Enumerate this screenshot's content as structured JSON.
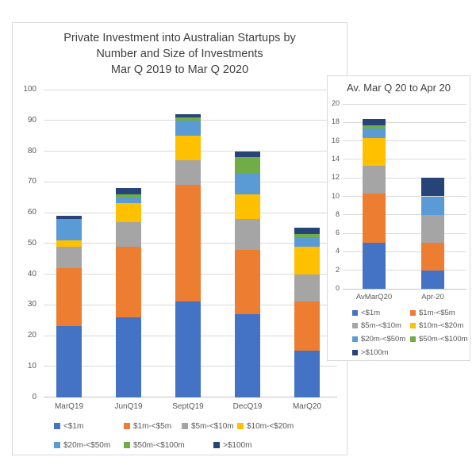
{
  "colors": {
    "lt1m": "#4472C4",
    "m1to5": "#ED7D31",
    "m5to10": "#A5A5A5",
    "m10to20": "#FFC000",
    "m20to50": "#5B9BD5",
    "m50to100": "#70AD47",
    "gt100m": "#264478",
    "gridline": "#D9D9D9",
    "axis_text": "#595959",
    "title_text": "#404040",
    "panel_border": "#D9D9D9"
  },
  "chart_data": [
    {
      "type": "bar",
      "stacked": true,
      "title": "Private Investment into Australian Startups by Number and Size of Investments Mar Q 2019 to Mar Q 2020",
      "title_lines": [
        "Private Investment into Australian Startups by",
        "Number and Size of Investments",
        "Mar Q 2019 to Mar Q 2020"
      ],
      "categories": [
        "MarQ19",
        "JunQ19",
        "SeptQ19",
        "DecQ19",
        "MarQ20"
      ],
      "series": [
        {
          "name": "<$1m",
          "color": "#4472C4",
          "values": [
            23,
            26,
            31,
            27,
            15
          ]
        },
        {
          "name": "$1m-<$5m",
          "color": "#ED7D31",
          "values": [
            19,
            23,
            38,
            21,
            16
          ]
        },
        {
          "name": "$5m-<$10m",
          "color": "#A5A5A5",
          "values": [
            7,
            8,
            8,
            10,
            9
          ]
        },
        {
          "name": "$10m-<$20m",
          "color": "#FFC000",
          "values": [
            2,
            6,
            8,
            8,
            9
          ]
        },
        {
          "name": "$20m-<$50m",
          "color": "#5B9BD5",
          "values": [
            7,
            2,
            5,
            7,
            3
          ]
        },
        {
          "name": "$50m-<$100m",
          "color": "#70AD47",
          "values": [
            0,
            1,
            1,
            5,
            1
          ]
        },
        {
          "name": ">$100m",
          "color": "#264478",
          "values": [
            1,
            2,
            1,
            2,
            2
          ]
        }
      ],
      "totals": [
        59,
        68,
        92,
        80,
        55
      ],
      "xlabel": "",
      "ylabel": "",
      "ylim": [
        0,
        100
      ],
      "yticks": [
        0,
        10,
        20,
        30,
        40,
        50,
        60,
        70,
        80,
        90,
        100
      ],
      "grid": true,
      "legend_position": "bottom"
    },
    {
      "type": "bar",
      "stacked": true,
      "title": "Av. Mar Q 20 to Apr 20",
      "categories": [
        "AvMarQ20",
        "Apr-20"
      ],
      "series": [
        {
          "name": "<$1m",
          "color": "#4472C4",
          "values": [
            5,
            2
          ]
        },
        {
          "name": "$1m-<$5m",
          "color": "#ED7D31",
          "values": [
            5.33,
            3
          ]
        },
        {
          "name": "$5m-<$10m",
          "color": "#A5A5A5",
          "values": [
            3,
            3
          ]
        },
        {
          "name": "$10m-<$20m",
          "color": "#FFC000",
          "values": [
            3,
            0
          ]
        },
        {
          "name": "$20m-<$50m",
          "color": "#5B9BD5",
          "values": [
            1,
            2
          ]
        },
        {
          "name": "$50m-<$100m",
          "color": "#70AD47",
          "values": [
            0.33,
            0
          ]
        },
        {
          "name": ">$100m",
          "color": "#264478",
          "values": [
            0.67,
            2
          ]
        }
      ],
      "totals": [
        18.33,
        12
      ],
      "xlabel": "",
      "ylabel": "",
      "ylim": [
        0,
        20
      ],
      "yticks": [
        0,
        2,
        4,
        6,
        8,
        10,
        12,
        14,
        16,
        18,
        20
      ],
      "grid": true,
      "legend_position": "bottom"
    }
  ]
}
